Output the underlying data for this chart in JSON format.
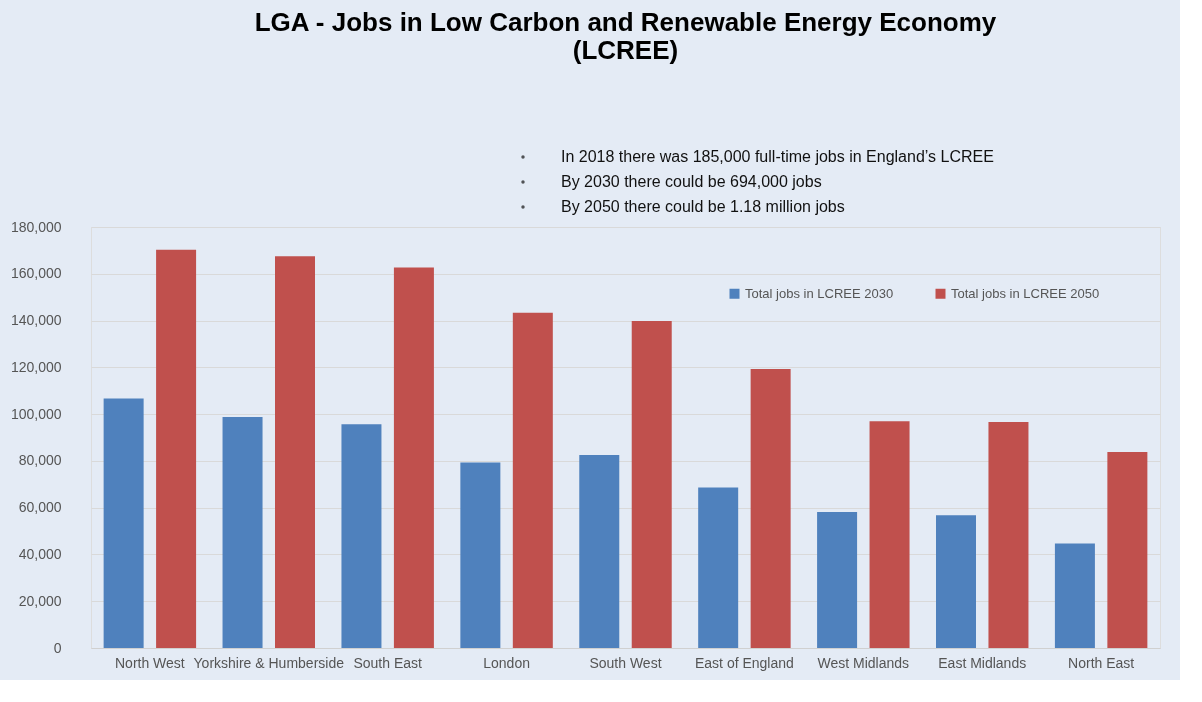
{
  "chart_data": {
    "type": "bar",
    "title": "LGA - Jobs in Low Carbon and Renewable Energy Economy (LCREE)",
    "annotations": [
      "In 2018 there was 185,000 full-time jobs in England’s LCREE",
      "By 2030 there could be 694,000 jobs",
      "By 2050 there could be 1.18 million jobs"
    ],
    "categories": [
      "North West",
      "Yorkshire & Humberside",
      "South East",
      "London",
      "South West",
      "East of England",
      "West Midlands",
      "East Midlands",
      "North East"
    ],
    "series": [
      {
        "name": "Total jobs in LCREE 2030",
        "color": "#4f81bd",
        "values": [
          106700,
          98800,
          95700,
          79300,
          82500,
          68600,
          58100,
          56800,
          44700
        ]
      },
      {
        "name": "Total jobs in LCREE 2050",
        "color": "#c0504d",
        "values": [
          170300,
          167500,
          162700,
          143300,
          139800,
          119300,
          96900,
          96600,
          83800
        ]
      }
    ],
    "ylim": [
      0,
      180000
    ],
    "yticks": [
      0,
      {
        "value": 20000,
        "label": "20,000"
      },
      {
        "value": 40000,
        "label": "40,000"
      },
      {
        "value": 60000,
        "label": "60,000"
      },
      {
        "value": 80000,
        "label": "80,000"
      },
      {
        "value": 100000,
        "label": "100,000"
      },
      {
        "value": 120000,
        "label": "120,000"
      },
      {
        "value": 140000,
        "label": "140,000"
      },
      {
        "value": 160000,
        "label": "160,000"
      },
      {
        "value": 180000,
        "label": "180,000"
      }
    ],
    "grid": "y",
    "legend": "top right"
  }
}
